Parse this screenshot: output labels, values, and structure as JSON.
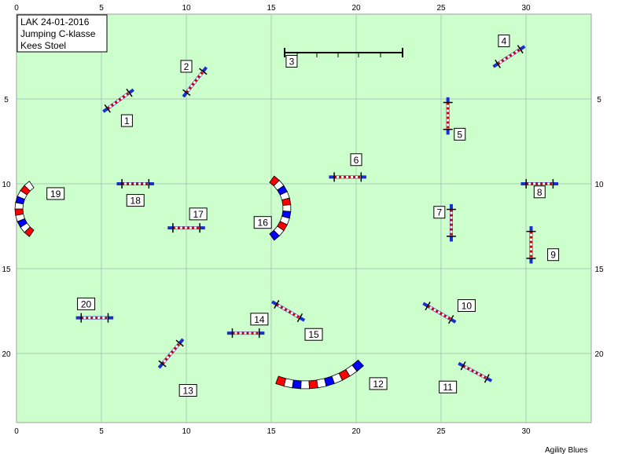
{
  "info": {
    "line1": "LAK 24-01-2016",
    "line2": "Jumping C-klasse",
    "line3": "Kees Stoel"
  },
  "credit": "Agility Blues",
  "colors": {
    "field": "#ccffcc",
    "grid": "#a8c8b8",
    "bar_red": "#cc0000",
    "wing_blue": "#1a2fcc",
    "tunnel_red": "#ff0000",
    "tunnel_blue": "#0000ff"
  },
  "axes": {
    "x_ticks": [
      "0",
      "5",
      "10",
      "15",
      "20",
      "25",
      "30"
    ],
    "y_ticks": [
      "5",
      "10",
      "15",
      "20"
    ],
    "bottom_ticks": [
      "0",
      "5",
      "10",
      "15",
      "20",
      "25",
      "30"
    ]
  },
  "course": {
    "jumps": [
      {
        "n": "1",
        "x": 6.0,
        "y": 5.1,
        "angle": -36,
        "len": 2.2
      },
      {
        "n": "2",
        "x": 10.5,
        "y": 4.0,
        "angle": -52,
        "len": 2.2
      },
      {
        "n": "4",
        "x": 29.0,
        "y": 2.5,
        "angle": -33,
        "len": 2.2
      },
      {
        "n": "5",
        "x": 25.4,
        "y": 6.0,
        "angle": 90,
        "len": 2.2
      },
      {
        "n": "6",
        "x": 19.5,
        "y": 9.6,
        "angle": 0,
        "len": 2.2
      },
      {
        "n": "7",
        "x": 25.6,
        "y": 12.3,
        "angle": 90,
        "len": 2.2
      },
      {
        "n": "8",
        "x": 30.8,
        "y": 10.0,
        "angle": 0,
        "len": 2.2
      },
      {
        "n": "9",
        "x": 30.3,
        "y": 13.6,
        "angle": 90,
        "len": 2.2
      },
      {
        "n": "10",
        "x": 24.9,
        "y": 17.6,
        "angle": 30,
        "len": 2.2
      },
      {
        "n": "11",
        "x": 27.0,
        "y": 21.1,
        "angle": 28,
        "len": 2.2
      },
      {
        "n": "13",
        "x": 9.1,
        "y": 20.0,
        "angle": -50,
        "len": 2.2
      },
      {
        "n": "14",
        "x": 13.5,
        "y": 18.8,
        "angle": 0,
        "len": 2.2
      },
      {
        "n": "15",
        "x": 16.0,
        "y": 17.5,
        "angle": 30,
        "len": 2.2
      },
      {
        "n": "17",
        "x": 10.0,
        "y": 12.6,
        "angle": 0,
        "len": 2.2
      },
      {
        "n": "18",
        "x": 7.0,
        "y": 10.0,
        "angle": 0,
        "len": 2.2
      },
      {
        "n": "20",
        "x": 4.6,
        "y": 17.9,
        "angle": 0,
        "len": 2.2
      }
    ],
    "labels": [
      {
        "n": "1",
        "x": 6.5,
        "y": 6.3
      },
      {
        "n": "2",
        "x": 10.0,
        "y": 3.1
      },
      {
        "n": "3",
        "x": 16.2,
        "y": 2.8
      },
      {
        "n": "4",
        "x": 28.7,
        "y": 1.6
      },
      {
        "n": "5",
        "x": 26.1,
        "y": 7.1
      },
      {
        "n": "6",
        "x": 20.0,
        "y": 8.6
      },
      {
        "n": "7",
        "x": 24.9,
        "y": 11.7
      },
      {
        "n": "8",
        "x": 30.8,
        "y": 10.5
      },
      {
        "n": "9",
        "x": 31.6,
        "y": 14.2
      },
      {
        "n": "10",
        "x": 26.5,
        "y": 17.2
      },
      {
        "n": "11",
        "x": 25.4,
        "y": 22.0
      },
      {
        "n": "12",
        "x": 21.3,
        "y": 21.8
      },
      {
        "n": "13",
        "x": 10.1,
        "y": 22.2
      },
      {
        "n": "14",
        "x": 14.3,
        "y": 18.0
      },
      {
        "n": "15",
        "x": 17.5,
        "y": 18.9
      },
      {
        "n": "16",
        "x": 14.5,
        "y": 12.3
      },
      {
        "n": "17",
        "x": 10.7,
        "y": 11.8
      },
      {
        "n": "18",
        "x": 7.0,
        "y": 11.0
      },
      {
        "n": "19",
        "x": 2.3,
        "y": 10.6
      },
      {
        "n": "20",
        "x": 4.1,
        "y": 17.1
      }
    ]
  }
}
